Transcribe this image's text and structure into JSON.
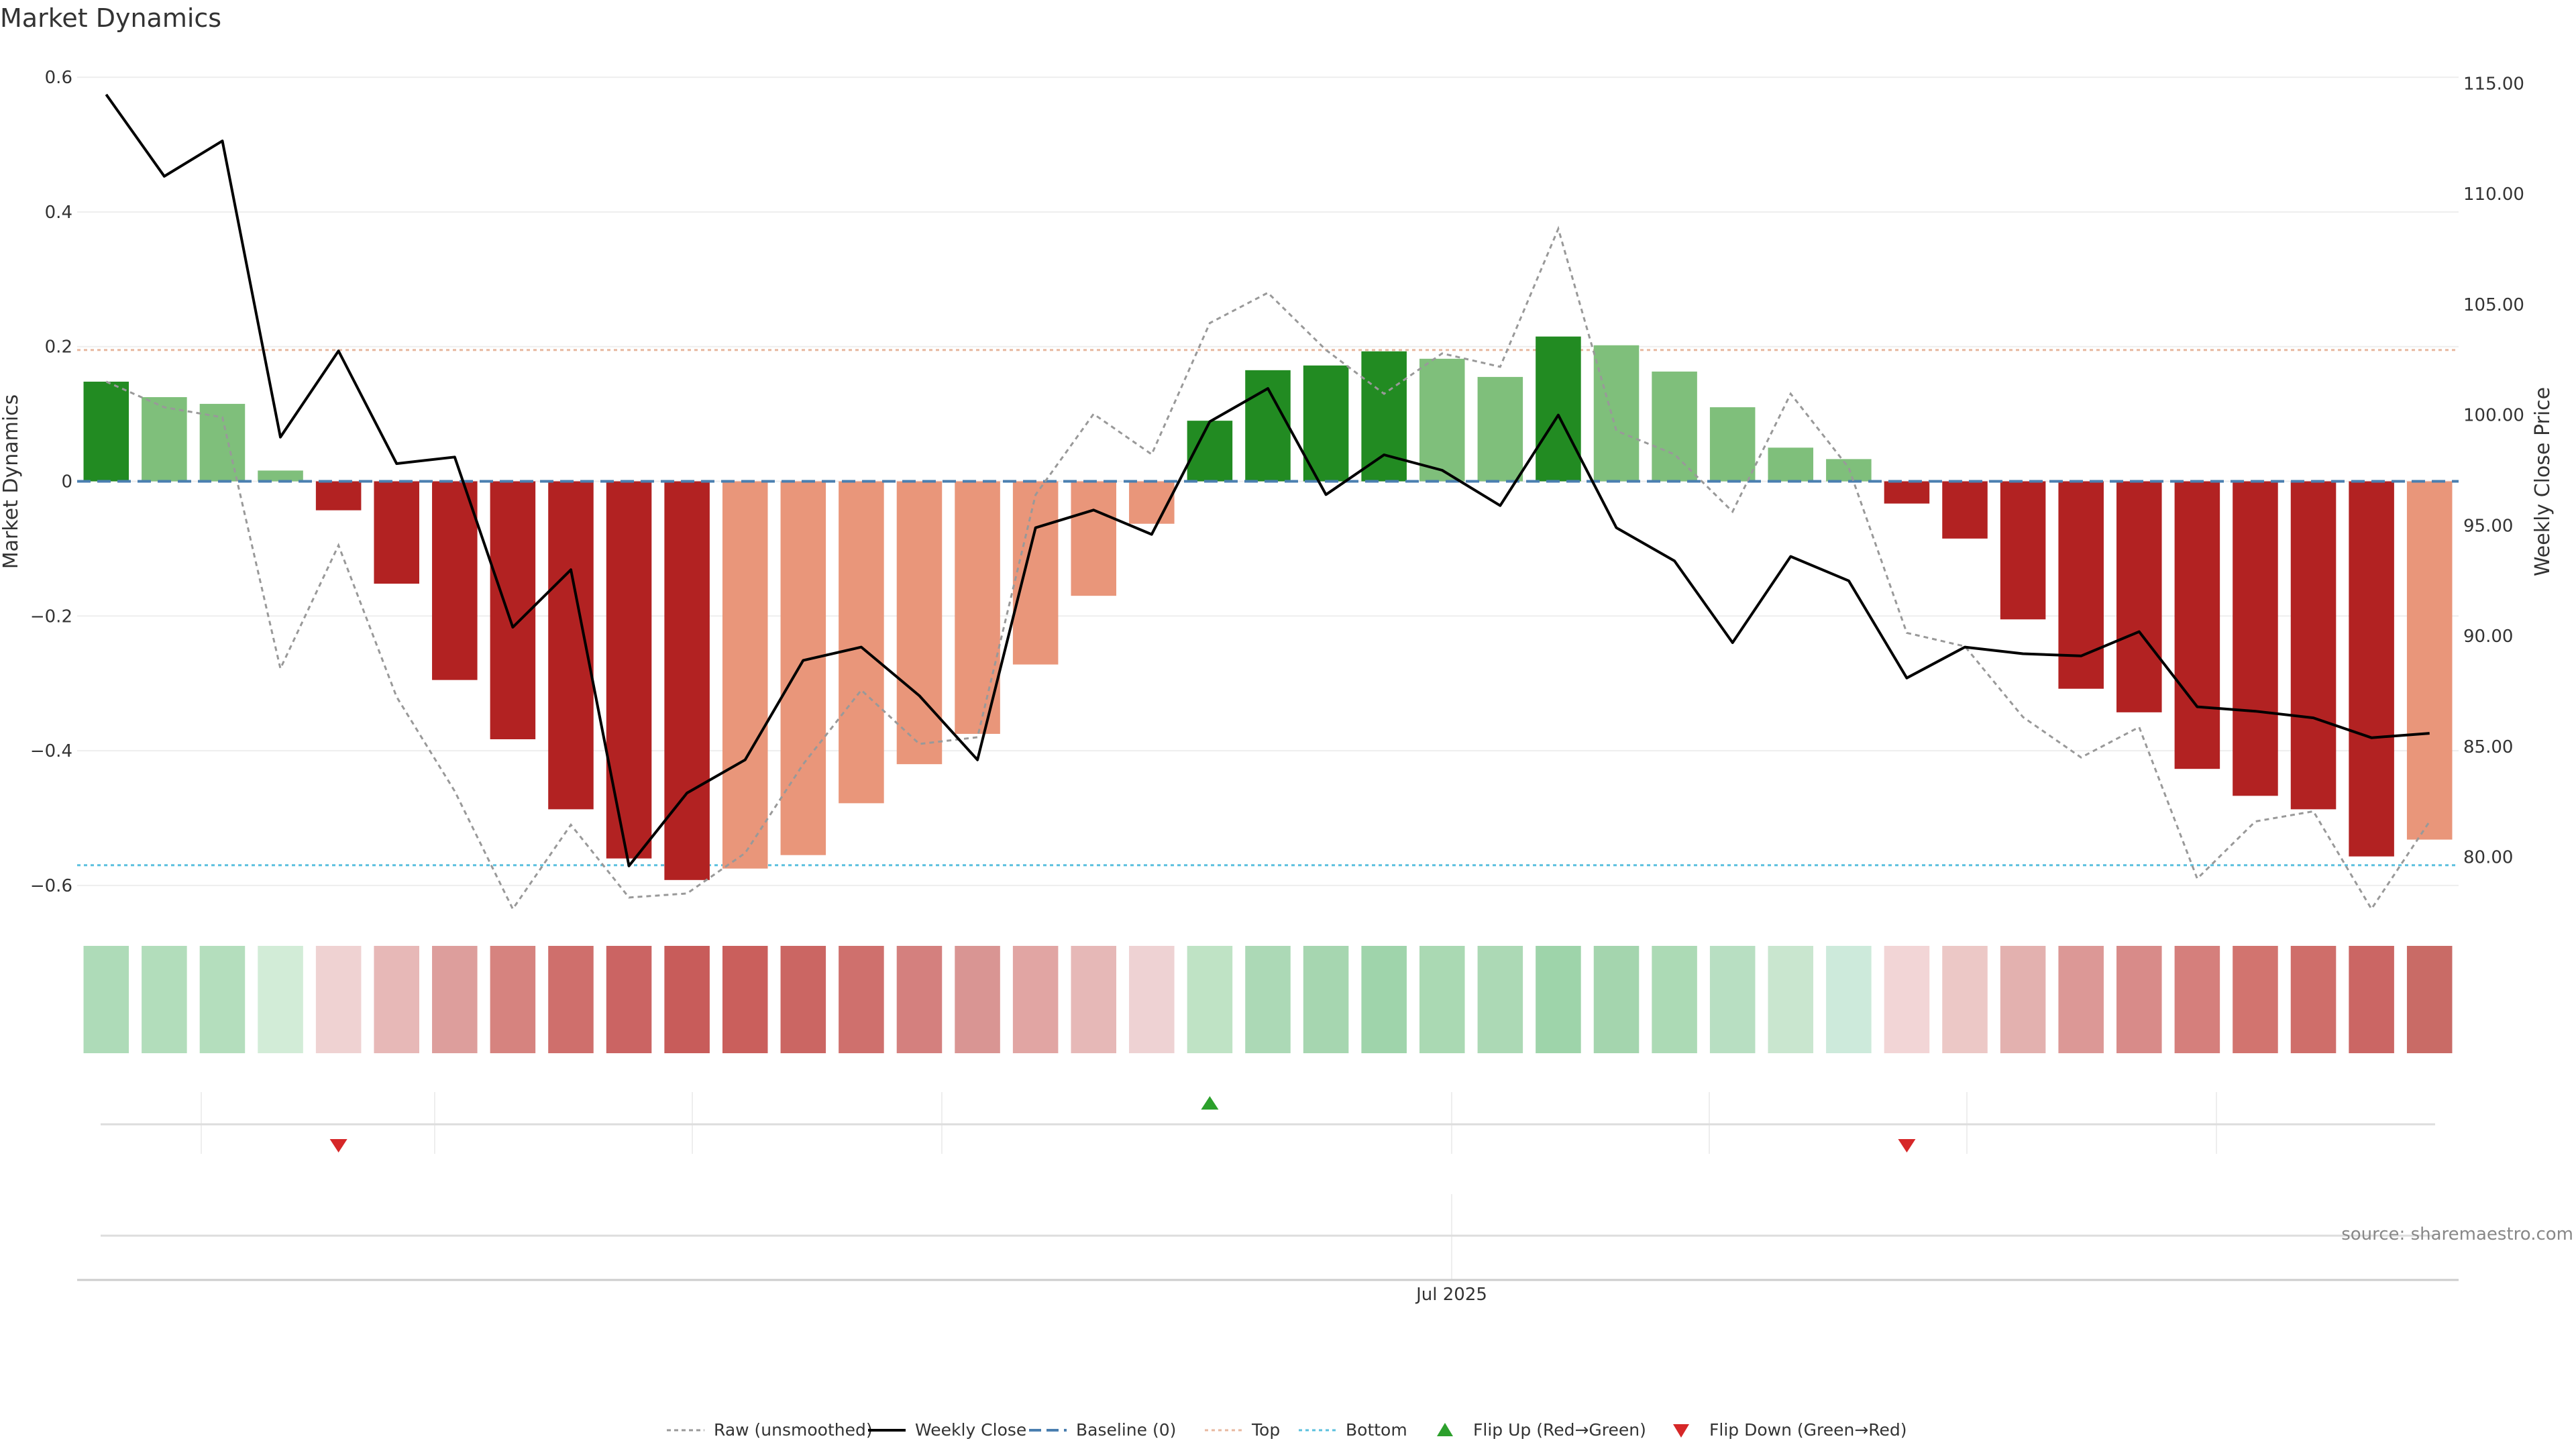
{
  "chart_data": {
    "type": "bar",
    "title": "Market Dynamics",
    "ylabel_left": "Market Dynamics",
    "ylabel_right": "Weekly Close Price",
    "source": "source: sharemaestro.com",
    "x_tick_label": "Jul 2025",
    "ylim_left": [
      -0.64,
      0.64
    ],
    "ylim_right": [
      77.5,
      116.5
    ],
    "yticks_left": [
      0.6,
      0.4,
      0.2,
      0,
      -0.2,
      -0.4,
      -0.6
    ],
    "ytick_labels_left": [
      "0.6",
      "0.4",
      "0.2",
      "0",
      "−0.2",
      "−0.4",
      "−0.6"
    ],
    "yticks_right": [
      115,
      110,
      105,
      100,
      95,
      90,
      85,
      80
    ],
    "ytick_labels_right": [
      "115.00",
      "110.00",
      "105.00",
      "100.00",
      "95.00",
      "90.00",
      "85.00",
      "80.00"
    ],
    "grid": true,
    "bar_values": [
      0.148,
      0.125,
      0.115,
      0.016,
      -0.043,
      -0.152,
      -0.295,
      -0.383,
      -0.487,
      -0.56,
      -0.592,
      -0.575,
      -0.555,
      -0.478,
      -0.42,
      -0.375,
      -0.272,
      -0.17,
      -0.063,
      0.09,
      0.165,
      0.172,
      0.193,
      0.182,
      0.155,
      0.215,
      0.202,
      0.163,
      0.11,
      0.05,
      0.033,
      -0.033,
      -0.085,
      -0.205,
      -0.308,
      -0.343,
      -0.427,
      -0.467,
      -0.487,
      -0.557,
      -0.532
    ],
    "bar_colors": [
      "#228b22",
      "#7fbf7b",
      "#7fbf7b",
      "#7fbf7b",
      "#b22222",
      "#b22222",
      "#b22222",
      "#b22222",
      "#b22222",
      "#b22222",
      "#b22222",
      "#e9967a",
      "#e9967a",
      "#e9967a",
      "#e9967a",
      "#e9967a",
      "#e9967a",
      "#e9967a",
      "#e9967a",
      "#228b22",
      "#228b22",
      "#228b22",
      "#228b22",
      "#7fbf7b",
      "#7fbf7b",
      "#228b22",
      "#7fbf7b",
      "#7fbf7b",
      "#7fbf7b",
      "#7fbf7b",
      "#7fbf7b",
      "#b22222",
      "#b22222",
      "#b22222",
      "#b22222",
      "#b22222",
      "#b22222",
      "#b22222",
      "#b22222",
      "#b22222",
      "#e9967a"
    ],
    "strip_colors": [
      "#aedbb8",
      "#b2ddbb",
      "#b4debd",
      "#d2ecd7",
      "#efd2d2",
      "#e7b8b7",
      "#dd9e9c",
      "#d6837f",
      "#cf6f6c",
      "#cb6463",
      "#c85c5a",
      "#ca5f5c",
      "#cb6663",
      "#cf706d",
      "#d4807e",
      "#d99593",
      "#e1a5a3",
      "#e6b8b7",
      "#eed2d3",
      "#bfe3c5",
      "#acd9b6",
      "#a6d6b0",
      "#9fd4ab",
      "#aad9b3",
      "#acd9b5",
      "#9ed4aa",
      "#a4d5ae",
      "#acdab5",
      "#b8dfc2",
      "#c9e6cf",
      "#cdeadb",
      "#f2d5d6",
      "#ecc8c6",
      "#e3b1af",
      "#dc9896",
      "#d88b89",
      "#d57f7c",
      "#d2746f",
      "#cf6e6a",
      "#cb6664",
      "#c96b66"
    ],
    "raw_series": [
      0.148,
      0.11,
      0.095,
      -0.278,
      -0.095,
      -0.32,
      -0.46,
      -0.635,
      -0.51,
      -0.618,
      -0.612,
      -0.552,
      -0.42,
      -0.31,
      -0.39,
      -0.38,
      -0.02,
      0.1,
      0.04,
      0.235,
      0.28,
      0.195,
      0.13,
      0.19,
      0.17,
      0.375,
      0.075,
      0.04,
      -0.045,
      0.13,
      0.02,
      -0.225,
      -0.245,
      -0.35,
      -0.41,
      -0.365,
      -0.59,
      -0.505,
      -0.49,
      -0.635,
      -0.505
    ],
    "weekly_close": [
      114.5,
      110.8,
      112.4,
      99.0,
      102.9,
      97.8,
      98.1,
      90.4,
      93.0,
      79.6,
      82.9,
      84.4,
      88.9,
      89.5,
      87.3,
      84.4,
      94.9,
      95.7,
      94.6,
      99.7,
      101.2,
      96.4,
      98.2,
      97.5,
      95.9,
      100.0,
      94.9,
      93.4,
      89.7,
      93.6,
      92.5,
      88.1,
      89.5,
      89.2,
      89.1,
      90.2,
      86.8,
      86.6,
      86.3,
      85.4,
      85.6
    ],
    "flip_up": [
      19
    ],
    "flip_down": [
      4,
      31
    ],
    "legend": {
      "placement": "bottom-center",
      "items": [
        {
          "label": "Raw (unsmoothed)",
          "style": "raw"
        },
        {
          "label": "Weekly Close",
          "style": "close"
        },
        {
          "label": "Baseline (0)",
          "style": "baseline"
        },
        {
          "label": "Top",
          "style": "top"
        },
        {
          "label": "Bottom",
          "style": "bottom"
        },
        {
          "label": "Flip Up (Red→Green)",
          "style": "flip-up"
        },
        {
          "label": "Flip Down (Green→Red)",
          "style": "flip-down"
        }
      ]
    },
    "top_level": 0.195,
    "bottom_level": -0.57,
    "colors": {
      "raw": "#999999",
      "close": "#000000",
      "baseline": "#4a7fb0",
      "top": "#e8b8a0",
      "bottom": "#5bc0de",
      "flip_up": "#2ca02c",
      "flip_down": "#d62728"
    }
  }
}
